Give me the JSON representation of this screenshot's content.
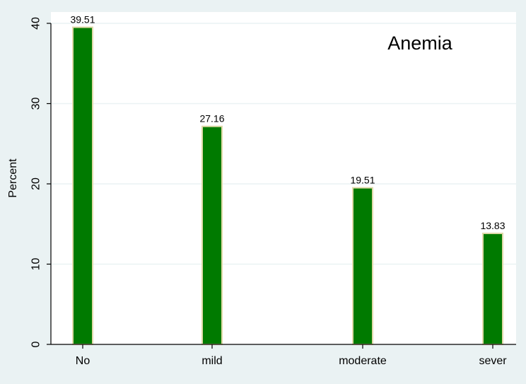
{
  "chart_data": {
    "type": "bar",
    "categories": [
      "No",
      "mild",
      "moderate",
      "sever"
    ],
    "values": [
      39.51,
      27.16,
      19.51,
      13.83
    ],
    "data_labels": [
      "39.51",
      "27.16",
      "19.51",
      "13.83"
    ],
    "title": "",
    "annotation": "Anemia",
    "xlabel": "",
    "ylabel": "Percent",
    "ylim": [
      0,
      40
    ],
    "yticks": [
      0,
      10,
      20,
      30,
      40
    ],
    "ytick_labels": [
      "0",
      "10",
      "20",
      "30",
      "40"
    ],
    "grid": true,
    "legend": "none",
    "colors": {
      "bar_fill": "#007a00",
      "bar_stroke": "#e0d9a8",
      "plot_background": "#ffffff",
      "outer_background": "#eaf2f3",
      "grid": "#eaf2f3"
    }
  }
}
